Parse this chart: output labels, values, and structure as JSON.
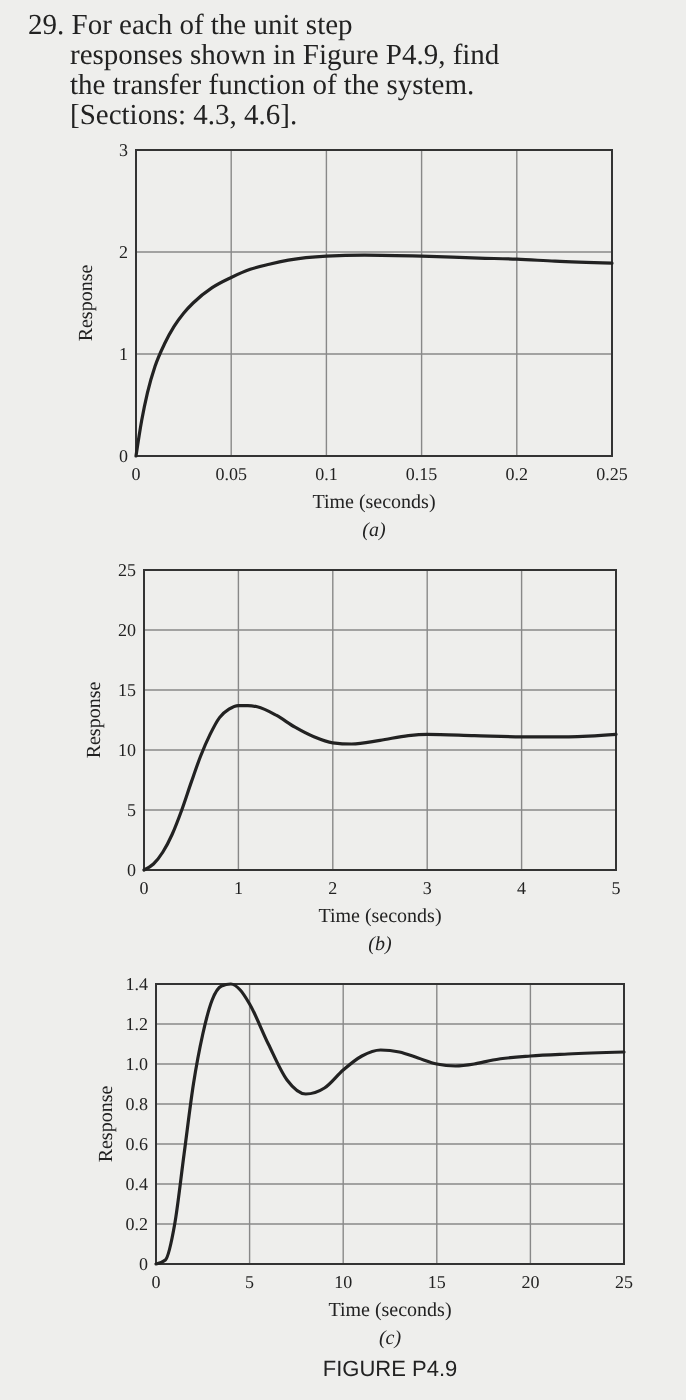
{
  "chart_data": [
    {
      "type": "line",
      "title": "29. For each of the unit step responses shown in Figure P4.9, find the transfer function of the system. [Sections: 4.3, 4.6].",
      "xlabel": "Time (seconds)",
      "ylabel": "Response",
      "annotations": [
        "(a)"
      ],
      "grid": true,
      "xlim": [
        0,
        0.25
      ],
      "xticks": [
        0,
        0.05,
        0.1,
        0.15,
        0.2,
        0.25
      ],
      "ylim": [
        0,
        3
      ],
      "yticks": [
        0,
        1,
        2,
        3
      ],
      "series": [
        {
          "color": "#222222",
          "x": [
            0,
            0.003,
            0.006,
            0.01,
            0.015,
            0.02,
            0.025,
            0.03,
            0.04,
            0.05,
            0.06,
            0.07,
            0.08,
            0.1,
            0.12,
            0.15,
            0.18,
            0.2,
            0.22,
            0.25
          ],
          "values": [
            0,
            0.35,
            0.62,
            0.88,
            1.1,
            1.27,
            1.4,
            1.5,
            1.65,
            1.75,
            1.83,
            1.88,
            1.92,
            1.96,
            1.97,
            1.96,
            1.94,
            1.93,
            1.91,
            1.89
          ]
        }
      ]
    },
    {
      "type": "line",
      "xlabel": "Time (seconds)",
      "ylabel": "Response",
      "annotations": [
        "(b)"
      ],
      "grid": true,
      "xlim": [
        0,
        5
      ],
      "xticks": [
        0,
        1,
        2,
        3,
        4,
        5
      ],
      "ylim": [
        0,
        25
      ],
      "yticks": [
        0,
        5,
        10,
        15,
        20,
        25
      ],
      "series": [
        {
          "color": "#222222",
          "x": [
            0,
            0.1,
            0.2,
            0.3,
            0.4,
            0.5,
            0.6,
            0.7,
            0.8,
            0.9,
            1,
            1.1,
            1.2,
            1.4,
            1.6,
            1.8,
            2,
            2.2,
            2.5,
            2.8,
            3,
            3.5,
            4,
            4.5,
            5
          ],
          "values": [
            0,
            0.5,
            1.5,
            3,
            5,
            7.3,
            9.5,
            11.3,
            12.7,
            13.4,
            13.7,
            13.7,
            13.6,
            12.9,
            11.9,
            11.1,
            10.6,
            10.5,
            10.8,
            11.2,
            11.3,
            11.2,
            11.1,
            11.1,
            11.3
          ]
        }
      ]
    },
    {
      "type": "line",
      "xlabel": "Time (seconds)",
      "ylabel": "Response",
      "annotations": [
        "(c)",
        "FIGURE P4.9"
      ],
      "grid": true,
      "xlim": [
        0,
        25
      ],
      "xticks": [
        0,
        5,
        10,
        15,
        20,
        25
      ],
      "ylim": [
        0,
        1.4
      ],
      "yticks": [
        0,
        0.2,
        0.4,
        0.6,
        0.8,
        {
          "value": 1,
          "label": "1.0"
        },
        1.2,
        1.4
      ],
      "series": [
        {
          "color": "#222222",
          "x": [
            0,
            0.5,
            1,
            1.5,
            2,
            2.5,
            3,
            3.5,
            4,
            4.5,
            5,
            6,
            7,
            8,
            9,
            10,
            11,
            12,
            13,
            14,
            15,
            16,
            17,
            18,
            20,
            22,
            25
          ],
          "values": [
            0,
            0.02,
            0.2,
            0.55,
            0.9,
            1.15,
            1.32,
            1.39,
            1.4,
            1.37,
            1.3,
            1.1,
            0.92,
            0.85,
            0.88,
            0.97,
            1.04,
            1.07,
            1.06,
            1.03,
            1.0,
            0.99,
            1.0,
            1.02,
            1.04,
            1.05,
            1.06
          ]
        }
      ]
    }
  ]
}
